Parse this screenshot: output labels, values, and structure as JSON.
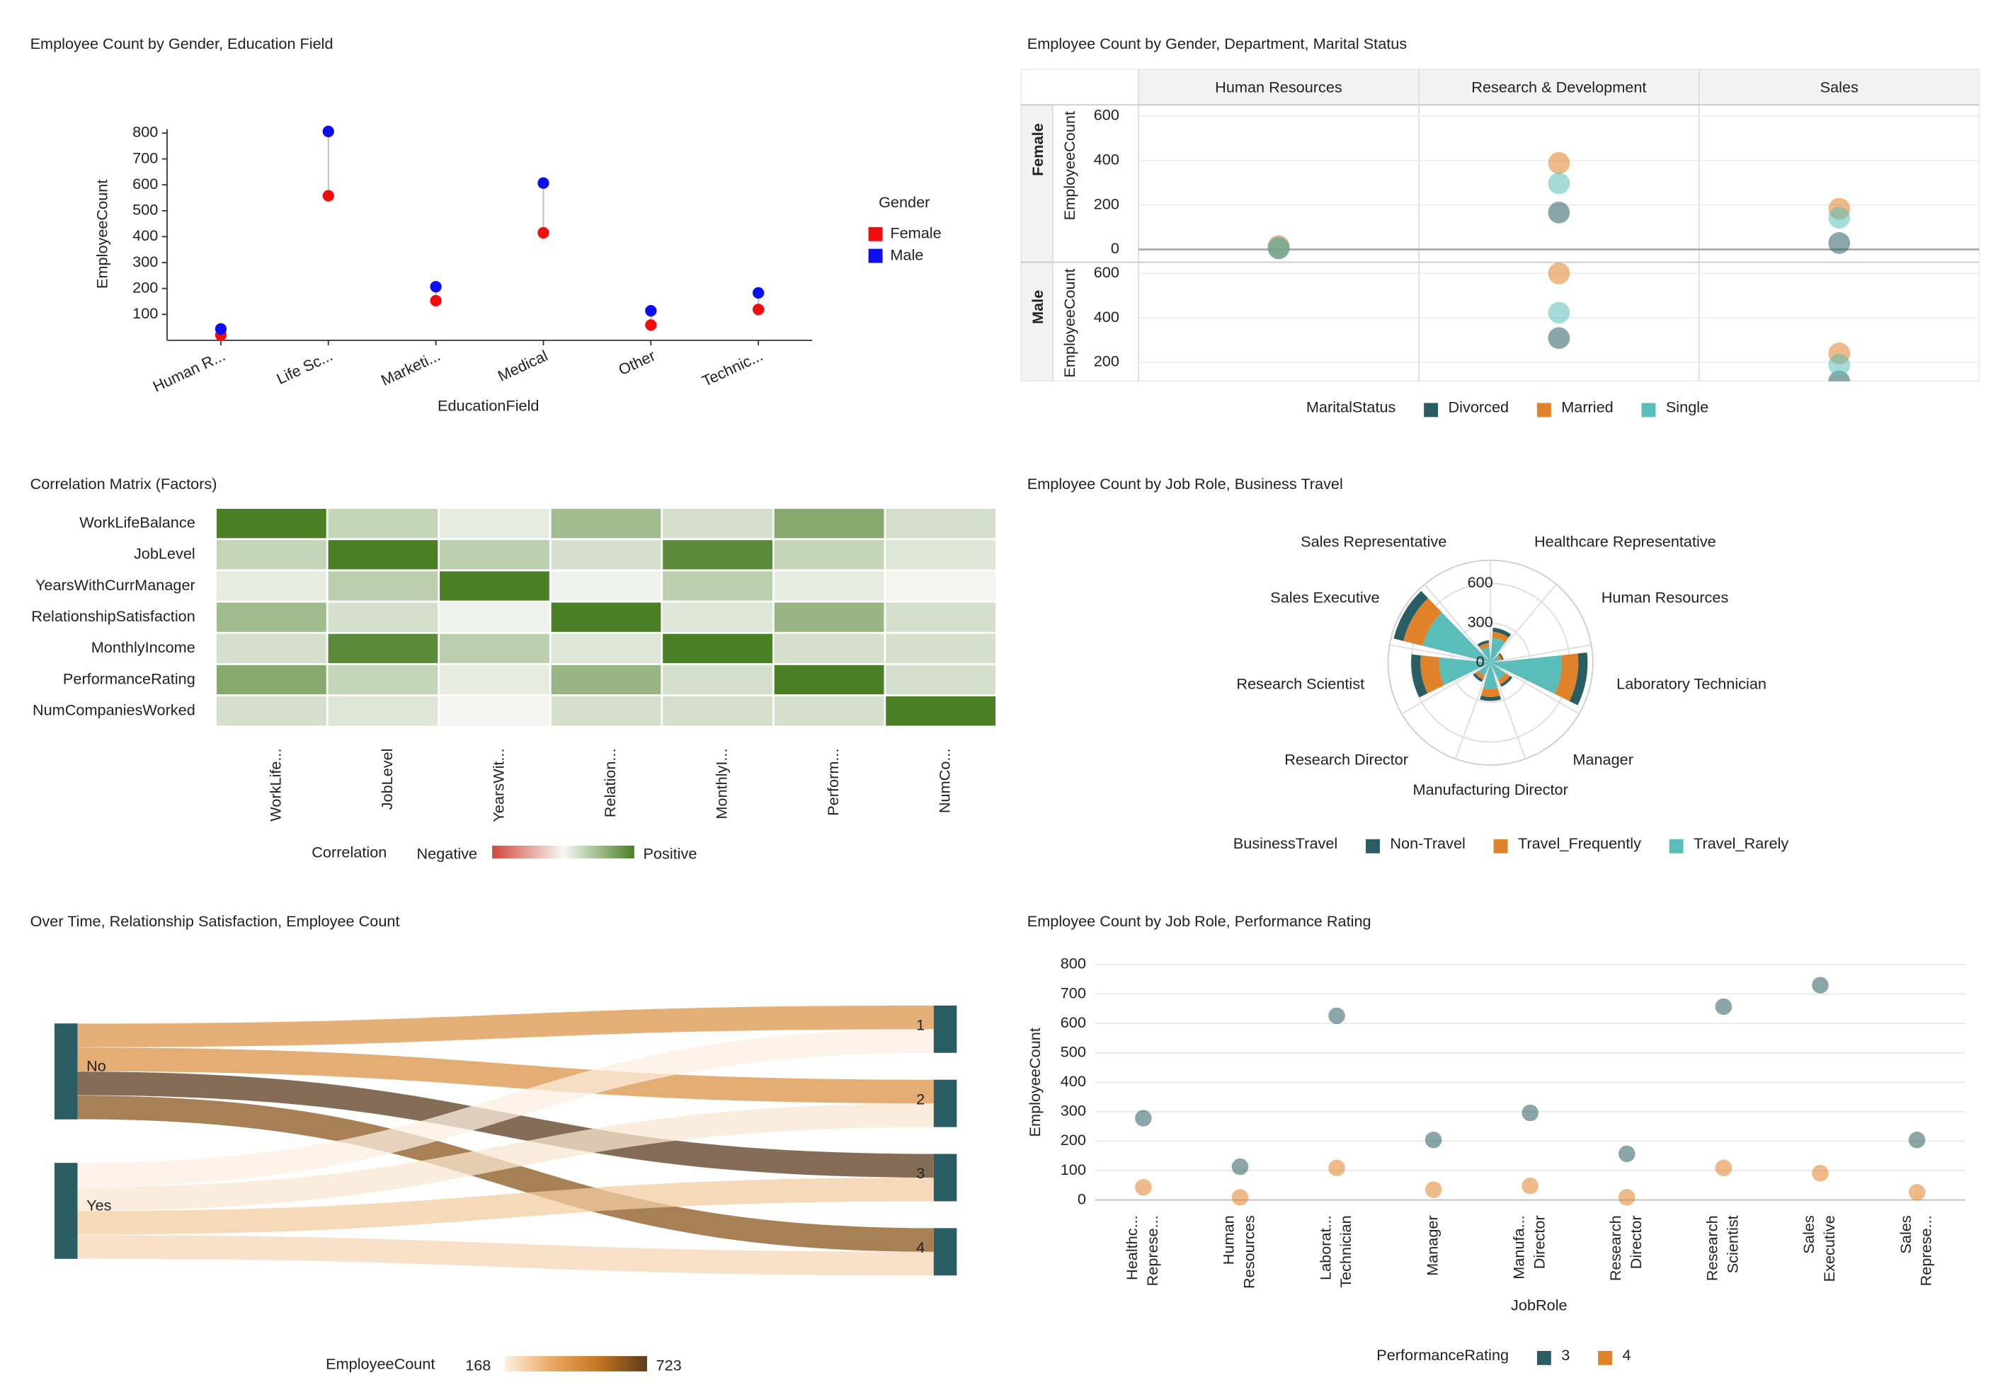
{
  "chart_data": [
    {
      "type": "dumbbell",
      "title": "Employee Count by Gender, Education Field",
      "x_label": "EducationField",
      "y_label": "EmployeeCount",
      "legend_title": "Gender",
      "categories": [
        "Human R...",
        "Life Sc...",
        "Marketi...",
        "Medical",
        "Other",
        "Technic..."
      ],
      "series": [
        {
          "name": "Female",
          "color": "#f20d0d",
          "values": [
            20,
            558,
            153,
            415,
            59,
            119
          ]
        },
        {
          "name": "Male",
          "color": "#0d0df2",
          "values": [
            44,
            806,
            207,
            607,
            114,
            183
          ]
        }
      ],
      "ylim": [
        0,
        800
      ],
      "yticks": [
        100,
        200,
        300,
        400,
        500,
        600,
        700,
        800
      ]
    },
    {
      "type": "trellis",
      "title": "Employee Count by Gender, Department, Marital Status",
      "y_label": "EmployeeCount",
      "legend_title": "MaritalStatus",
      "rows": [
        "Female",
        "Male"
      ],
      "columns": [
        "Human Resources",
        "Research & Development",
        "Sales"
      ],
      "ylim": [
        0,
        650
      ],
      "yticks": [
        0,
        200,
        400,
        600
      ],
      "series": [
        {
          "name": "Divorced",
          "color": "#2a5d63",
          "values": [
            [
              5,
              166,
              29
            ],
            [
              null,
              309,
              114
            ]
          ]
        },
        {
          "name": "Married",
          "color": "#e0822a",
          "values": [
            [
              15,
              389,
              183
            ],
            [
              null,
              600,
              240
            ]
          ]
        },
        {
          "name": "Single",
          "color": "#5bbdba",
          "values": [
            [
              9,
              297,
              143
            ],
            [
              null,
              423,
              189
            ]
          ]
        }
      ]
    },
    {
      "type": "heatmap",
      "title": "Correlation Matrix (Factors)",
      "legend_title": "Correlation",
      "negative_label": "Negative",
      "positive_label": "Positive",
      "negative_color": "#d0483a",
      "positive_color": "#4a7f25",
      "rows": [
        "WorkLifeBalance",
        "JobLevel",
        "YearsWithCurrManager",
        "RelationshipSatisfaction",
        "MonthlyIncome",
        "PerformanceRating",
        "NumCompaniesWorked"
      ],
      "columns": [
        "WorkLife...",
        "JobLevel",
        "YearsWit...",
        "Relation...",
        "MonthlyI...",
        "Perform...",
        "NumCo..."
      ],
      "values": [
        [
          1,
          0.3,
          0.1,
          0.5,
          0.2,
          0.65,
          0.2
        ],
        [
          0.3,
          1,
          0.35,
          0.2,
          0.9,
          0.3,
          0.15
        ],
        [
          0.1,
          0.35,
          1,
          0.05,
          0.35,
          0.1,
          0.03
        ],
        [
          0.5,
          0.2,
          0.05,
          1,
          0.15,
          0.55,
          0.2
        ],
        [
          0.2,
          0.9,
          0.35,
          0.15,
          1,
          0.2,
          0.2
        ],
        [
          0.65,
          0.3,
          0.1,
          0.55,
          0.2,
          1,
          0.2
        ],
        [
          0.2,
          0.15,
          0.03,
          0.2,
          0.2,
          0.2,
          1
        ]
      ]
    },
    {
      "type": "polar",
      "title": "Employee Count by Job Role, Business Travel",
      "legend_title": "BusinessTravel",
      "categories": [
        "Healthcare Representative",
        "Human Resources",
        "Laboratory Technician",
        "Manager",
        "Manufacturing Director",
        "Research Director",
        "Research Scientist",
        "Sales Executive",
        "Sales Representative"
      ],
      "rlim": [
        0,
        775
      ],
      "rticks": [
        0,
        300,
        600
      ],
      "series": [
        {
          "name": "Non-Travel",
          "color": "#2a5d63",
          "values": [
            30,
            12,
            70,
            20,
            30,
            20,
            70,
            75,
            20
          ]
        },
        {
          "name": "Travel_Frequently",
          "color": "#e0822a",
          "values": [
            45,
            20,
            125,
            40,
            60,
            30,
            140,
            150,
            30
          ]
        },
        {
          "name": "Travel_Rarely",
          "color": "#5bbdba",
          "values": [
            190,
            70,
            540,
            140,
            200,
            110,
            390,
            530,
            120
          ]
        }
      ]
    },
    {
      "type": "sankey",
      "title": "Over Time, Relationship Satisfaction, Employee Count",
      "legend_title": "EmployeeCount",
      "sources": [
        "No",
        "Yes"
      ],
      "targets": [
        "1",
        "2",
        "3",
        "4"
      ],
      "node_color": "#2a5d63",
      "links": [
        {
          "source": "No",
          "target": "1",
          "value": 420
        },
        {
          "source": "No",
          "target": "2",
          "value": 430
        },
        {
          "source": "No",
          "target": "3",
          "value": 723
        },
        {
          "source": "No",
          "target": "4",
          "value": 640
        },
        {
          "source": "Yes",
          "target": "1",
          "value": 168
        },
        {
          "source": "Yes",
          "target": "2",
          "value": 190
        },
        {
          "source": "Yes",
          "target": "3",
          "value": 260
        },
        {
          "source": "Yes",
          "target": "4",
          "value": 230
        }
      ],
      "clim": [
        168,
        723
      ],
      "colors": [
        "#fcefe0",
        "#eaa862",
        "#c4741f",
        "#5b3b1e"
      ]
    },
    {
      "type": "category_scatter",
      "title": "Employee Count by Job Role, Performance Rating",
      "x_label": "JobRole",
      "y_label": "EmployeeCount",
      "legend_title": "PerformanceRating",
      "categories": [
        [
          "Healthc...",
          "Represe..."
        ],
        [
          "Human",
          "Resources"
        ],
        [
          "Laborat...",
          "Technician"
        ],
        [
          "Manager"
        ],
        [
          "Manufa...",
          "Director"
        ],
        [
          "Research",
          "Director"
        ],
        [
          "Research",
          "Scientist"
        ],
        [
          "Sales",
          "Executive"
        ],
        [
          "Sales",
          "Represe..."
        ]
      ],
      "ylim": [
        0,
        800
      ],
      "yticks": [
        0,
        100,
        200,
        300,
        400,
        500,
        600,
        700,
        800
      ],
      "series": [
        {
          "name": "3",
          "color": "#2a5d63",
          "values": [
            278,
            113,
            626,
            204,
            296,
            157,
            657,
            730,
            204
          ]
        },
        {
          "name": "4",
          "color": "#e0822a",
          "values": [
            43,
            9,
            109,
            35,
            48,
            9,
            109,
            91,
            26
          ]
        }
      ]
    }
  ]
}
